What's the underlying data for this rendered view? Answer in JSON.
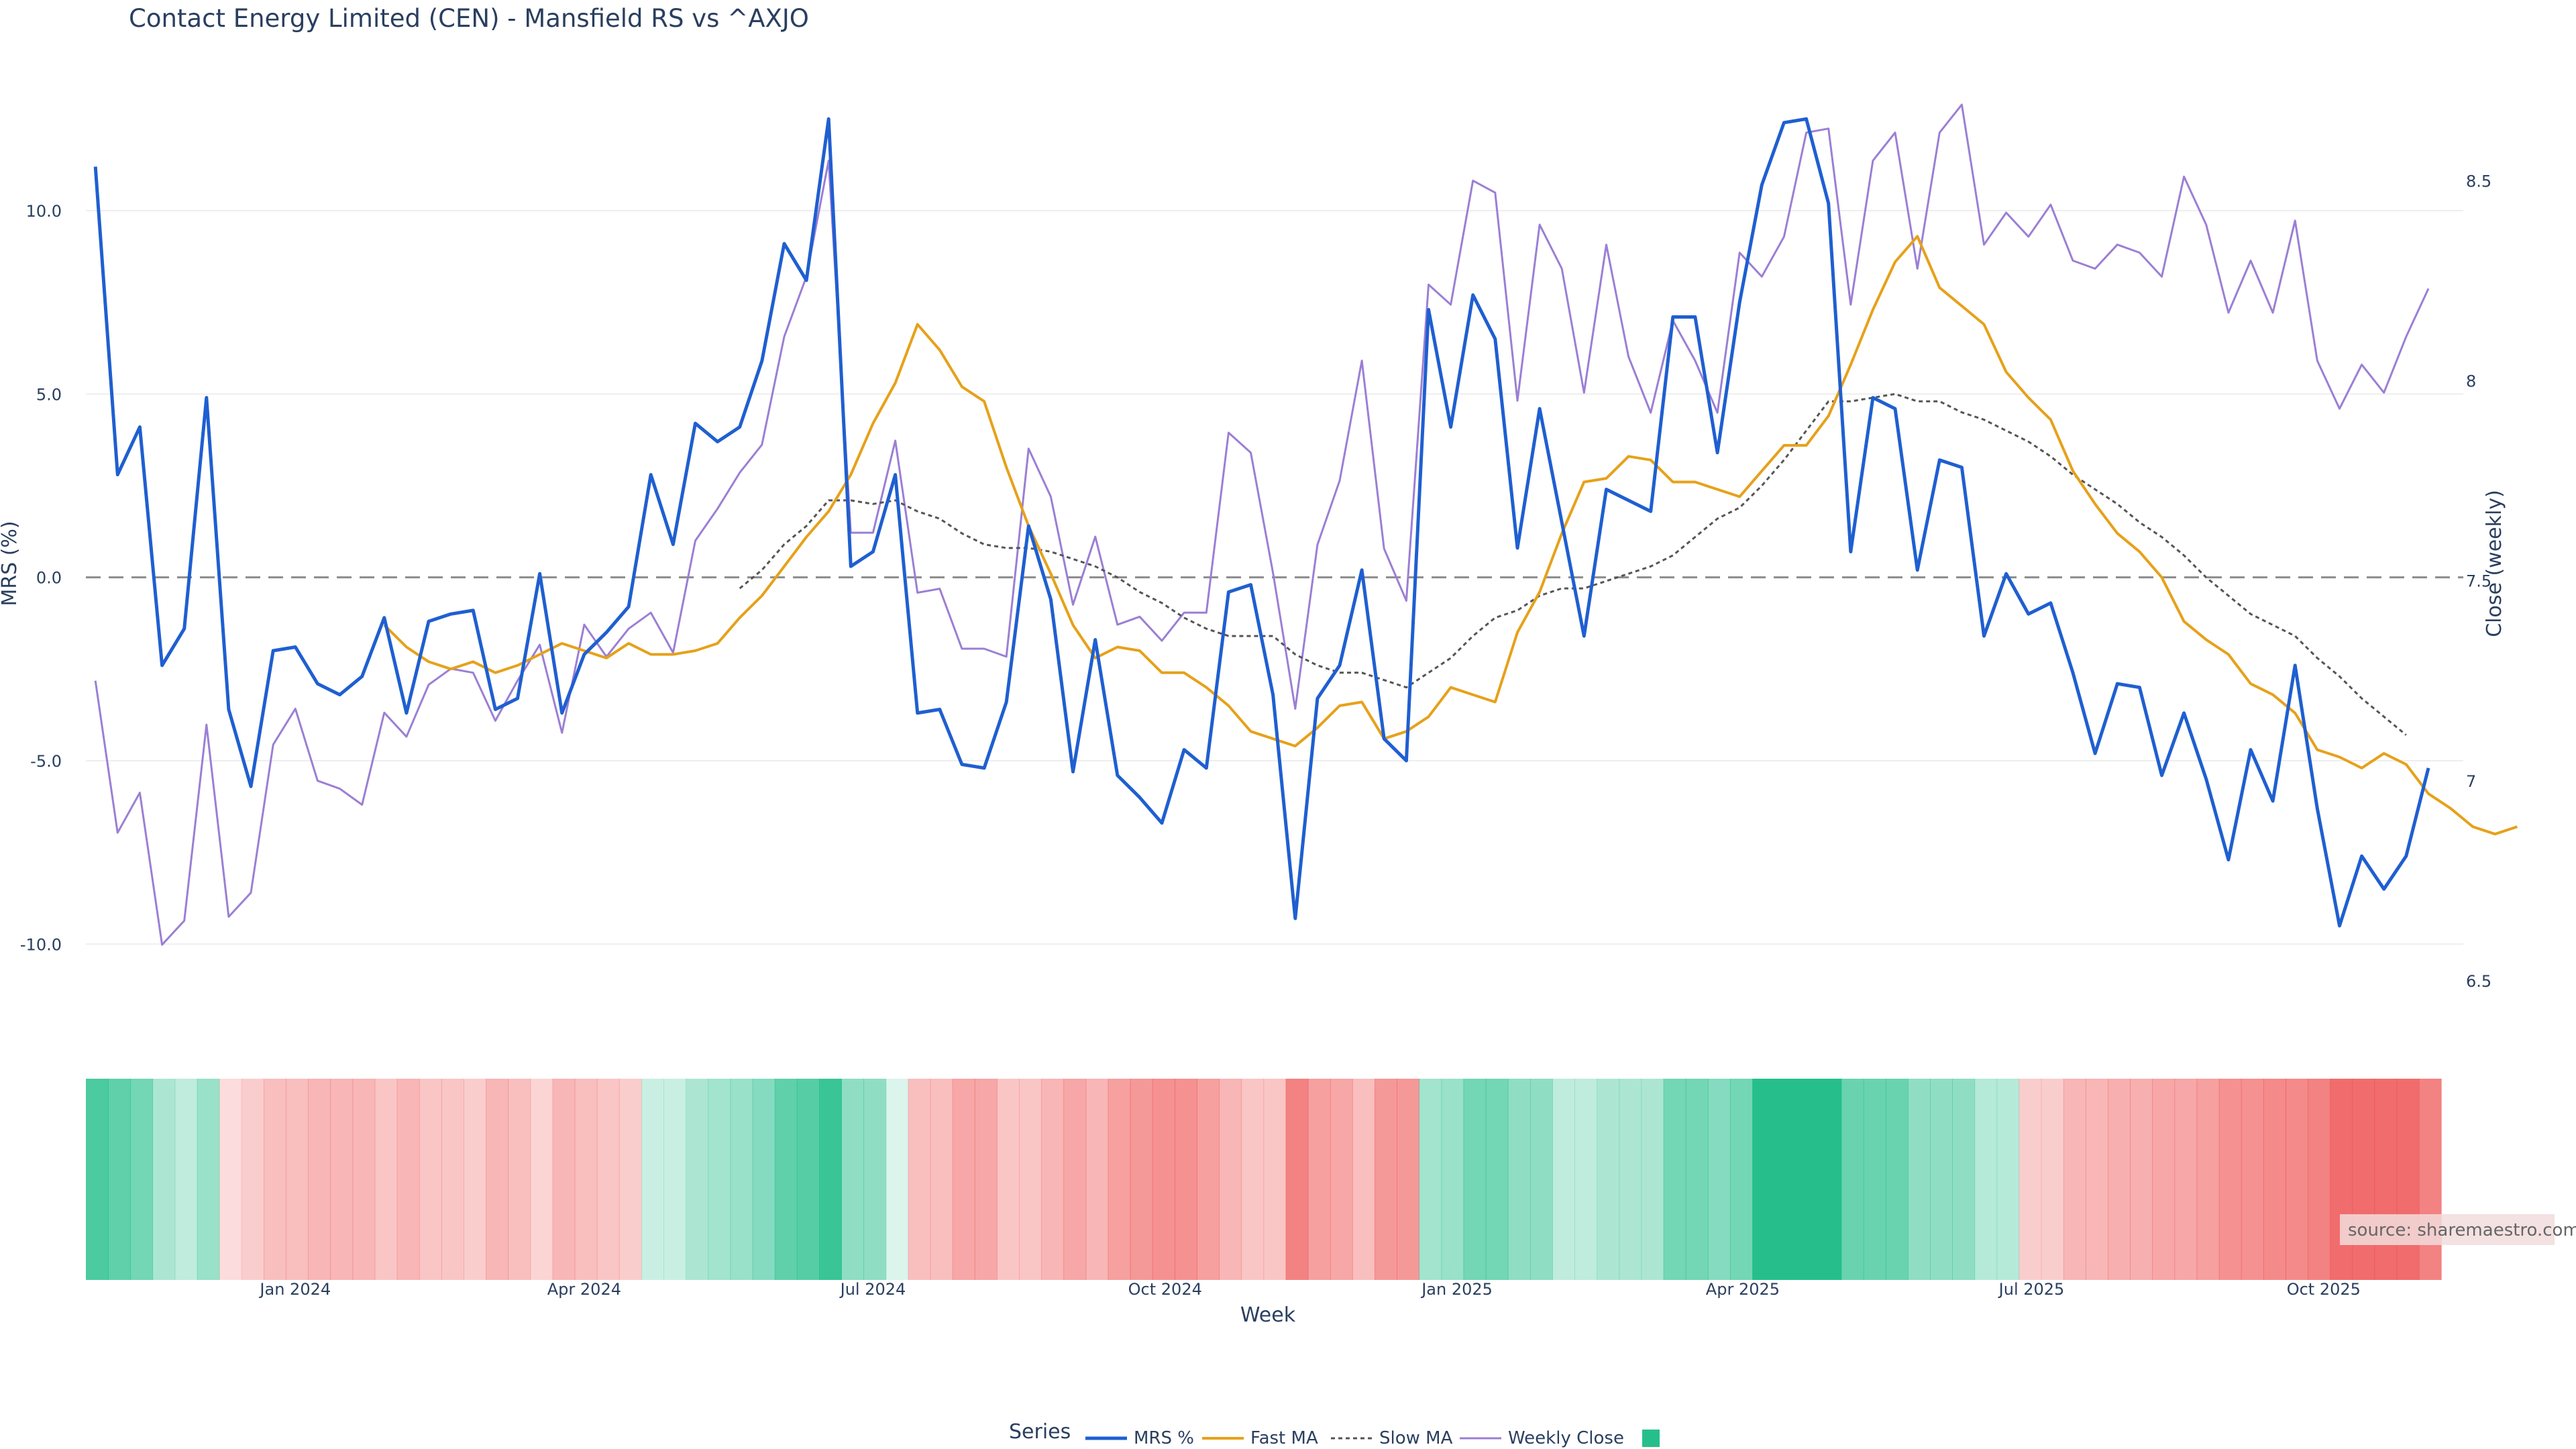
{
  "chart_data": {
    "type": "line",
    "title": "Contact Energy Limited (CEN) - Mansfield RS vs ^AXJO",
    "xlabel": "Week",
    "ylabel_left": "MRS (%)",
    "ylabel_right": "Close (weekly)",
    "ylim_left": [
      -11,
      13
    ],
    "ylim_right": [
      6.5,
      8.7
    ],
    "yticks_left": [
      10.0,
      5.0,
      0.0,
      -5.0,
      -10.0
    ],
    "yticks_left_labels": [
      "10.0",
      "5.0",
      "0.0",
      "-5.0",
      "-10.0"
    ],
    "yticks_right": [
      8.5,
      8,
      7.5,
      7,
      6.5
    ],
    "yticks_right_labels": [
      "8.5",
      "8",
      "7.5",
      "7",
      "6.5"
    ],
    "x_start": "2023-10-27",
    "x_end": "2025-11-14",
    "x_ticks": [
      {
        "date": "2024-01-01",
        "label": "Jan 2024"
      },
      {
        "date": "2024-04-01",
        "label": "Apr 2024"
      },
      {
        "date": "2024-07-01",
        "label": "Jul 2024"
      },
      {
        "date": "2024-10-01",
        "label": "Oct 2024"
      },
      {
        "date": "2025-01-01",
        "label": "Jan 2025"
      },
      {
        "date": "2025-04-01",
        "label": "Apr 2025"
      },
      {
        "date": "2025-07-01",
        "label": "Jul 2025"
      },
      {
        "date": "2025-10-01",
        "label": "Oct 2025"
      }
    ],
    "zero_line": 0,
    "grid": true,
    "legend_position": "bottom-center",
    "legend_title": "Series",
    "source_text": "source: sharemaestro.com",
    "colors": {
      "mrs": "#1f5fd0",
      "fast": "#e6a11a",
      "slow": "#555555",
      "close": "#9b7fd4",
      "positive": "#26bf8c",
      "negative": "#ef5555",
      "zero": "#8c8c8c",
      "grid": "#eeeeee"
    },
    "series": [
      {
        "name": "MRS %",
        "x_start": "2023-10-30",
        "values": [
          11.2,
          2.8,
          4.1,
          -2.4,
          -1.4,
          4.9,
          -3.6,
          -5.7,
          -2.0,
          -1.9,
          -2.9,
          -3.2,
          -2.7,
          -1.1,
          -3.7,
          -1.2,
          -1.0,
          -0.9,
          -3.6,
          -3.3,
          0.1,
          -3.7,
          -2.1,
          -1.5,
          -0.8,
          2.8,
          0.9,
          4.2,
          3.7,
          4.1,
          5.9,
          9.1,
          8.1,
          12.5,
          0.3,
          0.7,
          2.8,
          -3.7,
          -3.6,
          -5.1,
          -5.2,
          -3.4,
          1.4,
          -0.6,
          -5.3,
          -1.7,
          -5.4,
          -6.0,
          -6.7,
          -4.7,
          -5.2,
          -0.4,
          -0.2,
          -3.2,
          -9.3,
          -3.3,
          -2.4,
          0.2,
          -4.4,
          -5.0,
          7.3,
          4.1,
          7.7,
          6.5,
          0.8,
          4.6,
          1.5,
          -1.6,
          2.4,
          2.1,
          1.8,
          7.1,
          7.1,
          3.4,
          7.5,
          10.7,
          12.4,
          12.5,
          10.2,
          0.7,
          4.9,
          4.6,
          0.2,
          3.2,
          3.0,
          -1.6,
          0.1,
          -1.0,
          -0.7,
          -2.6,
          -4.8,
          -2.9,
          -3.0,
          -5.4,
          -3.7,
          -5.5,
          -7.7,
          -4.7,
          -6.1,
          -2.4,
          -6.3,
          -9.5,
          -7.6,
          -8.5,
          -7.6,
          -5.2
        ]
      },
      {
        "name": "Fast MA",
        "x_start": "2024-01-29",
        "values": [
          -1.3,
          -1.9,
          -2.3,
          -2.5,
          -2.3,
          -2.6,
          -2.4,
          -2.1,
          -1.8,
          -2.0,
          -2.2,
          -1.8,
          -2.1,
          -2.1,
          -2.0,
          -1.8,
          -1.1,
          -0.5,
          0.3,
          1.1,
          1.8,
          2.8,
          4.2,
          5.3,
          6.9,
          6.2,
          5.2,
          4.8,
          3.0,
          1.4,
          0.1,
          -1.3,
          -2.2,
          -1.9,
          -2.0,
          -2.6,
          -2.6,
          -3.0,
          -3.5,
          -4.2,
          -4.4,
          -4.6,
          -4.1,
          -3.5,
          -3.4,
          -4.4,
          -4.2,
          -3.8,
          -3.0,
          -3.2,
          -3.4,
          -1.5,
          -0.4,
          1.2,
          2.6,
          2.7,
          3.3,
          3.2,
          2.6,
          2.6,
          2.4,
          2.2,
          2.9,
          3.6,
          3.6,
          4.4,
          5.8,
          7.3,
          8.6,
          9.3,
          7.9,
          7.4,
          6.9,
          5.6,
          4.9,
          4.3,
          2.9,
          2.0,
          1.2,
          0.7,
          0.0,
          -1.2,
          -1.7,
          -2.1,
          -2.9,
          -3.2,
          -3.7,
          -4.7,
          -4.9,
          -5.2,
          -4.8,
          -5.1,
          -5.9,
          -6.3,
          -6.8,
          -7.0,
          -6.8
        ]
      },
      {
        "name": "Slow MA",
        "x_start": "2024-05-20",
        "values": [
          -0.3,
          0.2,
          0.9,
          1.4,
          2.1,
          2.1,
          2.0,
          2.1,
          1.8,
          1.6,
          1.2,
          0.9,
          0.8,
          0.8,
          0.7,
          0.5,
          0.3,
          0.0,
          -0.4,
          -0.7,
          -1.1,
          -1.4,
          -1.6,
          -1.6,
          -1.6,
          -2.1,
          -2.4,
          -2.6,
          -2.6,
          -2.8,
          -3.0,
          -2.6,
          -2.2,
          -1.6,
          -1.1,
          -0.9,
          -0.5,
          -0.3,
          -0.3,
          -0.1,
          0.1,
          0.3,
          0.6,
          1.1,
          1.6,
          1.9,
          2.5,
          3.2,
          4.0,
          4.8,
          4.8,
          4.9,
          5.0,
          4.8,
          4.8,
          4.5,
          4.3,
          4.0,
          3.7,
          3.3,
          2.8,
          2.4,
          2.0,
          1.5,
          1.1,
          0.6,
          0.0,
          -0.5,
          -1.0,
          -1.3,
          -1.6,
          -2.2,
          -2.7,
          -3.3,
          -3.8,
          -4.3
        ]
      },
      {
        "name": "Weekly Close",
        "x_start": "2023-10-30",
        "values": [
          7.25,
          6.87,
          6.97,
          6.59,
          6.65,
          7.14,
          6.66,
          6.72,
          7.09,
          7.18,
          7.0,
          6.98,
          6.94,
          7.17,
          7.11,
          7.24,
          7.28,
          7.27,
          7.15,
          7.25,
          7.34,
          7.12,
          7.39,
          7.31,
          7.38,
          7.42,
          7.32,
          7.6,
          7.68,
          7.77,
          7.84,
          8.11,
          8.26,
          8.55,
          7.62,
          7.62,
          7.85,
          7.47,
          7.48,
          7.33,
          7.33,
          7.31,
          7.83,
          7.71,
          7.44,
          7.61,
          7.39,
          7.41,
          7.35,
          7.42,
          7.42,
          7.87,
          7.82,
          7.52,
          7.18,
          7.59,
          7.75,
          8.05,
          7.58,
          7.45,
          8.24,
          8.19,
          8.5,
          8.47,
          7.95,
          8.39,
          8.28,
          7.97,
          8.34,
          8.06,
          7.92,
          8.15,
          8.05,
          7.92,
          8.32,
          8.26,
          8.36,
          8.62,
          8.63,
          8.19,
          8.55,
          8.62,
          8.28,
          8.62,
          8.69,
          8.34,
          8.42,
          8.36,
          8.44,
          8.3,
          8.28,
          8.34,
          8.32,
          8.26,
          8.51,
          8.39,
          8.17,
          8.3,
          8.17,
          8.4,
          8.05,
          7.93,
          8.04,
          7.97,
          8.11,
          8.23
        ]
      }
    ],
    "heatmap": {
      "description_levels": "signed intensity per week, -1 (strong red) to 1 (strong green)",
      "x_start": "2023-10-27",
      "values": [
        0.8,
        0.7,
        0.6,
        0.3,
        0.2,
        0.4,
        -0.1,
        -0.2,
        -0.3,
        -0.3,
        -0.35,
        -0.35,
        -0.35,
        -0.25,
        -0.35,
        -0.25,
        -0.25,
        -0.2,
        -0.35,
        -0.3,
        -0.15,
        -0.35,
        -0.3,
        -0.25,
        -0.2,
        0.15,
        0.15,
        0.3,
        0.35,
        0.4,
        0.5,
        0.7,
        0.75,
        0.9,
        0.45,
        0.45,
        0.05,
        -0.3,
        -0.3,
        -0.45,
        -0.45,
        -0.25,
        -0.25,
        -0.35,
        -0.45,
        -0.35,
        -0.5,
        -0.55,
        -0.6,
        -0.6,
        -0.5,
        -0.35,
        -0.25,
        -0.25,
        -0.7,
        -0.5,
        -0.45,
        -0.3,
        -0.55,
        -0.55,
        0.35,
        0.4,
        0.6,
        0.6,
        0.45,
        0.45,
        0.2,
        0.2,
        0.3,
        0.3,
        0.3,
        0.6,
        0.6,
        0.5,
        0.6,
        1.0,
        1.0,
        1.0,
        1.0,
        0.65,
        0.65,
        0.65,
        0.45,
        0.45,
        0.45,
        0.25,
        0.25,
        -0.2,
        -0.2,
        -0.35,
        -0.35,
        -0.4,
        -0.4,
        -0.45,
        -0.45,
        -0.5,
        -0.6,
        -0.6,
        -0.65,
        -0.65,
        -0.7,
        -0.85,
        -0.85,
        -0.85,
        -0.85,
        -0.7
      ]
    }
  }
}
